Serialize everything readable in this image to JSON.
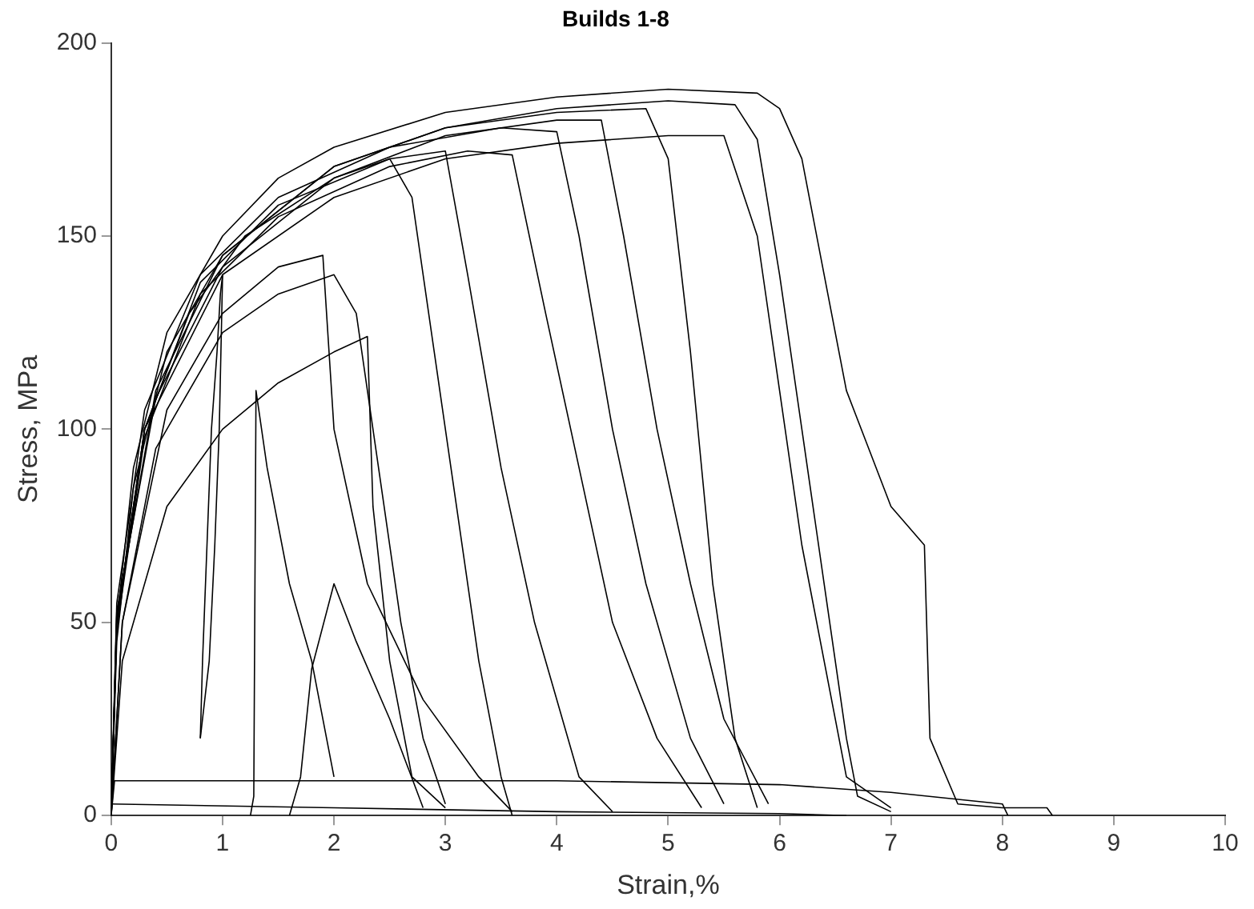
{
  "chart_data": {
    "type": "line",
    "title": "Builds 1-8",
    "xlabel": "Strain,%",
    "ylabel": "Stress, MPa",
    "xlim": [
      0,
      10
    ],
    "xticks": [
      0,
      1,
      2,
      3,
      4,
      5,
      6,
      7,
      8,
      9,
      10
    ],
    "ylim": [
      0,
      200
    ],
    "yticks": [
      0,
      50,
      100,
      150,
      200
    ],
    "grid": false,
    "legend": false,
    "marker": "none",
    "line_style": "solid",
    "series": [
      {
        "color": "#000000",
        "x": [
          0,
          0.05,
          0.2,
          0.5,
          1,
          1.5,
          2,
          3,
          4,
          5,
          5.8,
          6,
          6.2,
          6.4,
          6.6,
          6.8,
          7,
          7.3,
          7.35,
          7.6,
          8,
          8.4,
          8.45
        ],
        "values": [
          0,
          50,
          90,
          125,
          150,
          165,
          173,
          182,
          186,
          188,
          187,
          183,
          170,
          140,
          110,
          95,
          80,
          70,
          20,
          3,
          2,
          2,
          0
        ]
      },
      {
        "color": "#000000",
        "x": [
          0,
          0.05,
          0.2,
          0.5,
          1,
          2,
          3,
          4,
          5,
          5.6,
          5.8,
          6,
          6.2,
          6.4,
          6.6,
          6.7,
          7
        ],
        "values": [
          0,
          45,
          85,
          120,
          145,
          168,
          178,
          183,
          185,
          184,
          175,
          140,
          100,
          60,
          20,
          5,
          1
        ]
      },
      {
        "color": "#000000",
        "x": [
          0,
          0.1,
          0.5,
          1,
          1.5,
          2,
          2.3,
          2.35,
          2.5,
          2.7,
          3
        ],
        "values": [
          0,
          40,
          80,
          100,
          112,
          120,
          124,
          80,
          40,
          10,
          2
        ]
      },
      {
        "color": "#000000",
        "x": [
          0,
          0.05,
          0.3,
          0.7,
          1.2,
          2,
          2.5,
          2.7,
          2.9,
          3.1,
          3.3,
          3.5,
          3.6
        ],
        "values": [
          0,
          50,
          100,
          130,
          150,
          165,
          170,
          160,
          120,
          80,
          40,
          10,
          0
        ]
      },
      {
        "color": "#000000",
        "x": [
          0,
          0.1,
          0.4,
          1,
          1.5,
          2,
          2.2,
          2.4,
          2.6,
          2.8,
          3
        ],
        "values": [
          0,
          50,
          95,
          125,
          135,
          140,
          130,
          90,
          50,
          20,
          3
        ]
      },
      {
        "color": "#000000",
        "x": [
          0,
          0.05,
          0.3,
          0.8,
          1.5,
          2.5,
          3.5,
          4,
          4.2,
          4.5,
          4.8,
          5.2,
          5.5
        ],
        "values": [
          0,
          55,
          105,
          140,
          160,
          173,
          178,
          177,
          150,
          100,
          60,
          20,
          3
        ]
      },
      {
        "color": "#000000",
        "x": [
          0,
          0.05,
          0.3,
          0.8,
          1.5,
          2.5,
          3,
          3.2,
          3.5,
          3.8,
          4.2,
          4.5
        ],
        "values": [
          0,
          50,
          100,
          138,
          158,
          170,
          172,
          140,
          90,
          50,
          10,
          1
        ]
      },
      {
        "color": "#000000",
        "x": [
          0,
          0.05,
          0.4,
          1,
          2,
          3,
          4,
          4.8,
          5,
          5.2,
          5.4,
          5.6,
          5.8
        ],
        "values": [
          0,
          52,
          110,
          145,
          168,
          178,
          182,
          183,
          170,
          120,
          60,
          20,
          2
        ]
      },
      {
        "color": "#000000",
        "x": [
          0,
          0.1,
          0.5,
          1,
          1.5,
          1.9,
          2,
          2.3,
          2.8,
          3.3,
          3.6
        ],
        "values": [
          0,
          50,
          105,
          130,
          142,
          145,
          100,
          60,
          30,
          10,
          1
        ]
      },
      {
        "color": "#000000",
        "x": [
          0,
          0.05,
          0.3,
          1,
          2,
          3,
          4,
          5,
          5.5,
          5.8,
          6,
          6.2,
          6.4,
          6.6,
          7
        ],
        "values": [
          0,
          50,
          100,
          140,
          160,
          170,
          174,
          176,
          176,
          150,
          110,
          70,
          40,
          10,
          2
        ]
      },
      {
        "color": "#000000",
        "x": [
          0,
          0.05,
          0.3,
          0.8,
          1.5,
          2.5,
          3.2,
          3.6,
          3.9,
          4.2,
          4.5,
          4.9,
          5.3
        ],
        "values": [
          0,
          48,
          98,
          135,
          155,
          168,
          172,
          171,
          130,
          90,
          50,
          20,
          2
        ]
      },
      {
        "color": "#000000",
        "x": [
          0,
          0.05,
          0.4,
          1,
          2,
          3,
          4,
          4.4,
          4.6,
          4.9,
          5.2,
          5.5,
          5.9
        ],
        "values": [
          0,
          53,
          108,
          142,
          165,
          176,
          180,
          180,
          150,
          100,
          60,
          25,
          3
        ]
      },
      {
        "color": "#000000",
        "x": [
          0,
          0.03,
          2,
          4,
          6,
          7,
          8,
          8.05
        ],
        "values": [
          0,
          9,
          9,
          9,
          8,
          6,
          3,
          0
        ]
      },
      {
        "color": "#000000",
        "x": [
          0,
          2,
          4,
          6,
          6.6
        ],
        "values": [
          3,
          2,
          1,
          0.5,
          0
        ]
      },
      {
        "color": "#000000",
        "x": [
          0.8,
          0.82,
          0.86,
          0.9,
          0.95,
          0.98,
          1
        ],
        "values": [
          20,
          40,
          70,
          100,
          120,
          135,
          140
        ]
      },
      {
        "color": "#000000",
        "x": [
          0.8,
          0.88,
          0.93,
          0.97,
          1
        ],
        "values": [
          20,
          40,
          70,
          100,
          140
        ]
      },
      {
        "color": "#000000",
        "x": [
          1.25,
          1.28,
          1.3,
          1.4,
          1.6,
          1.8,
          2
        ],
        "values": [
          0,
          5,
          110,
          90,
          60,
          40,
          10
        ]
      },
      {
        "color": "#000000",
        "x": [
          1.6,
          1.7,
          1.8,
          2,
          2.2,
          2.5,
          2.8
        ],
        "values": [
          0,
          10,
          38,
          60,
          45,
          25,
          2
        ]
      }
    ]
  }
}
